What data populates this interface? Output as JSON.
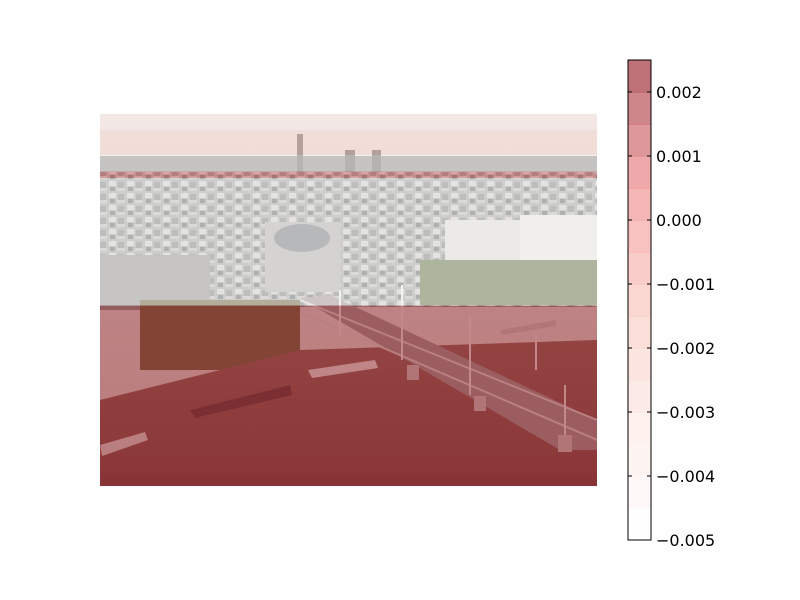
{
  "chart_data": {
    "type": "heatmap",
    "background_image": "aerial-photo-london-river-bridge-station",
    "colormap": "Reds",
    "overlay_alpha": 0.5,
    "value_range": [
      -0.005,
      0.0025
    ],
    "overlay_rows": [
      {
        "y_range": [
          0.0,
          0.044
        ],
        "value": -0.0035
      },
      {
        "y_range": [
          0.044,
          0.11
        ],
        "value": -0.0025
      },
      {
        "y_range": [
          0.11,
          0.155
        ],
        "value": -0.0048
      },
      {
        "y_range": [
          0.155,
          0.172
        ],
        "value": 0.0005
      },
      {
        "y_range": [
          0.172,
          0.515
        ],
        "value": -0.005
      },
      {
        "y_range": [
          0.515,
          0.965
        ],
        "value": 0.0024
      },
      {
        "y_range": [
          0.965,
          1.0
        ],
        "value": 0.0025
      }
    ],
    "colorbar": {
      "ticks": [
        0.002,
        0.001,
        0.0,
        -0.001,
        -0.002,
        -0.003,
        -0.004,
        -0.005
      ],
      "tick_labels": [
        "0.002",
        "0.001",
        "0.000",
        "−0.001",
        "−0.002",
        "−0.003",
        "−0.004",
        "−0.005"
      ],
      "levels": [
        -0.005,
        -0.0045,
        -0.004,
        -0.0035,
        -0.003,
        -0.0025,
        -0.002,
        -0.0015,
        -0.001,
        -0.0005,
        0.0,
        0.0005,
        0.001,
        0.0015,
        0.002,
        0.0025
      ],
      "cmin": -0.005,
      "cmax": 0.0025
    }
  }
}
